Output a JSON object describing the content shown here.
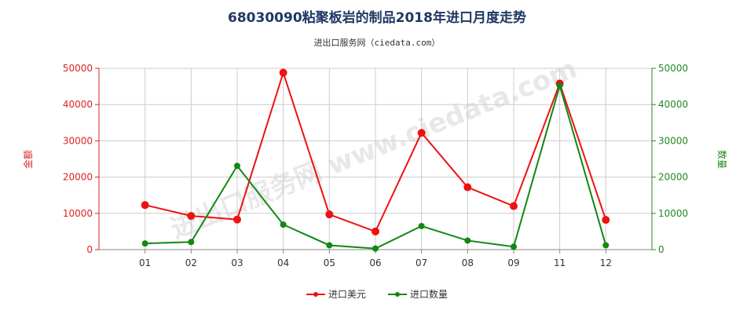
{
  "title": "68030090粘聚板岩的制品2018年进口月度走势",
  "subtitle": "进出口服务网（ciedata.com）",
  "watermark": "进出口服务网 www.ciedata.com",
  "chart_data": {
    "type": "line",
    "categories": [
      "01",
      "02",
      "03",
      "04",
      "05",
      "06",
      "07",
      "08",
      "09",
      "11",
      "12"
    ],
    "series": [
      {
        "name": "进口美元",
        "axis": "left",
        "color": "#ee1111",
        "values": [
          12300,
          9300,
          8300,
          48800,
          9700,
          5000,
          32200,
          17200,
          12000,
          45800,
          8200
        ]
      },
      {
        "name": "进口数量",
        "axis": "right",
        "color": "#118811",
        "values": [
          1700,
          2100,
          23100,
          6900,
          1200,
          300,
          6500,
          2500,
          800,
          45200,
          1200
        ]
      }
    ],
    "left_axis": {
      "label": "金额",
      "min": 0,
      "max": 50000,
      "ticks": [
        "0",
        "10000",
        "20000",
        "30000",
        "40000",
        "50000"
      ],
      "color": "#dd2222"
    },
    "right_axis": {
      "label": "数量",
      "min": 0,
      "max": 50000,
      "ticks": [
        "0",
        "10000",
        "20000",
        "30000",
        "40000",
        "50000"
      ],
      "color": "#228822"
    },
    "grid": true,
    "legend_position": "bottom-center"
  }
}
